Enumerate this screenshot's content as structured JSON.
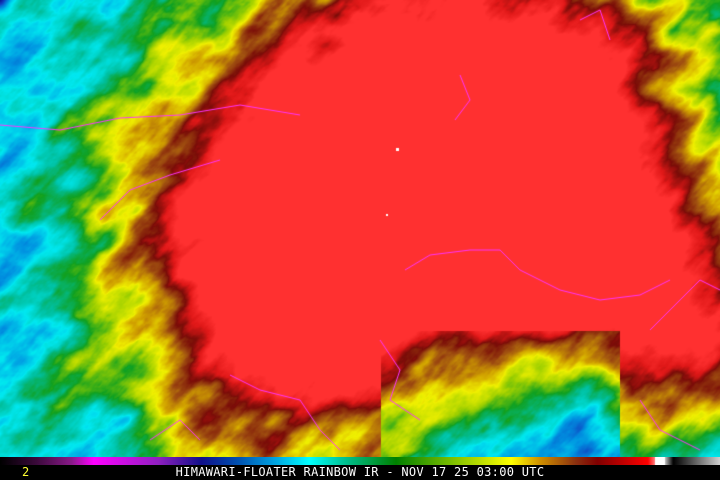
{
  "image": {
    "title": "HIMAWARI-FLOATER RAINBOW IR - NOV 17 25 03:00 UTC",
    "frame_label": "2",
    "colors": {
      "coastline": "#ff33ff",
      "caption_text": "#ffffff",
      "frame_label": "#ffff33",
      "background": "#000000"
    },
    "color_scale": [
      "#000000",
      "#3a0a3a",
      "#8a1a8a",
      "#ff00ff",
      "#9020c0",
      "#10108a",
      "#0050b0",
      "#00a0e0",
      "#00ffff",
      "#00c090",
      "#008000",
      "#80c000",
      "#ffff00",
      "#d09000",
      "#8a3010",
      "#800000",
      "#ff0000",
      "#ffffff",
      "#000000",
      "#d0d0d0"
    ]
  }
}
